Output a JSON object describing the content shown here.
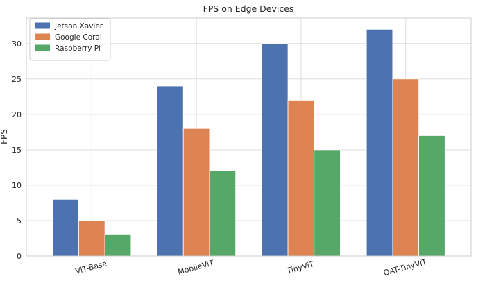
{
  "chart_data": {
    "type": "bar",
    "title": "FPS on Edge Devices",
    "xlabel": "",
    "ylabel": "FPS",
    "categories": [
      "ViT-Base",
      "MobileViT",
      "TinyViT",
      "QAT-TinyViT"
    ],
    "series": [
      {
        "name": "Jetson Xavier",
        "color": "#4c72b0",
        "values": [
          8,
          24,
          30,
          32
        ]
      },
      {
        "name": "Google Coral",
        "color": "#dd8452",
        "values": [
          5,
          18,
          22,
          25
        ]
      },
      {
        "name": "Raspberry Pi",
        "color": "#55a868",
        "values": [
          3,
          12,
          15,
          17
        ]
      }
    ],
    "ylim": [
      0,
      33.6
    ],
    "yticks": [
      0,
      5,
      10,
      15,
      20,
      25,
      30
    ],
    "grid": true,
    "legend_position": "top-left",
    "xtick_rotation_deg": -15
  }
}
